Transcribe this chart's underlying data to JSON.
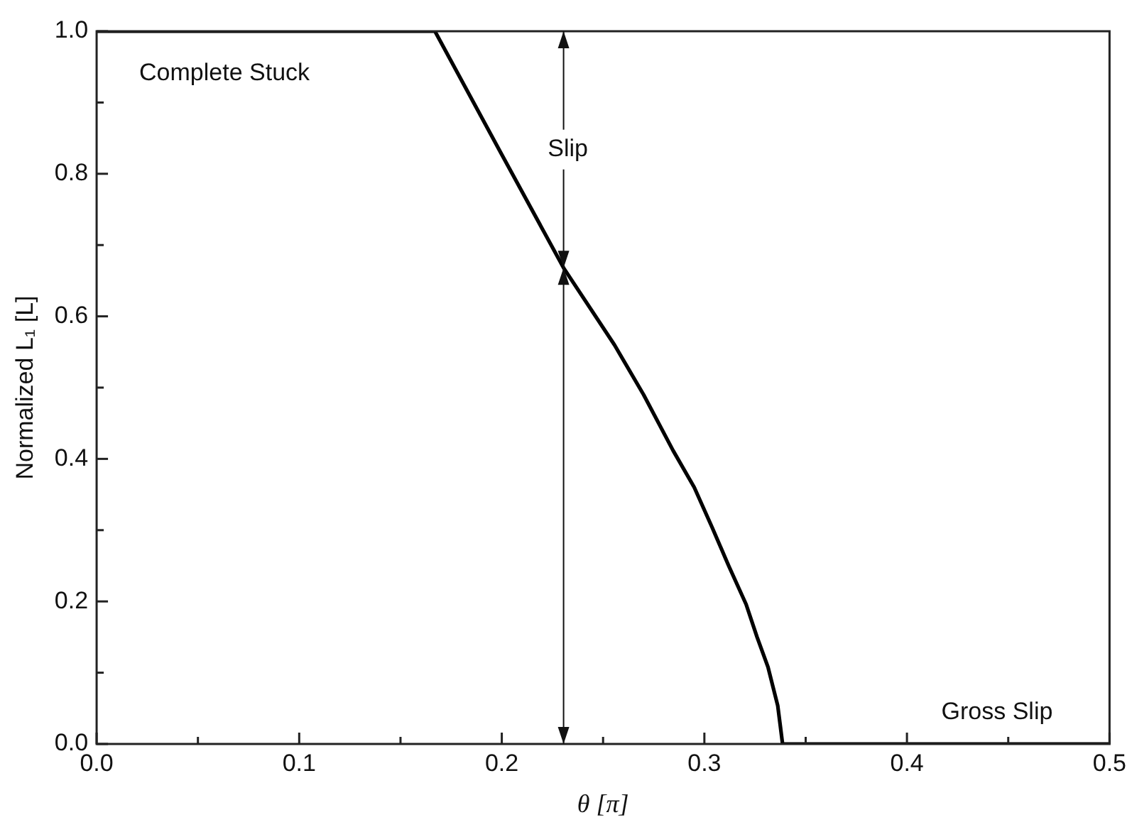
{
  "chart_data": {
    "type": "line",
    "xlabel": "θ [π]",
    "ylabel": "Normalized L₁ [L]",
    "x": [
      0,
      0.167,
      0.2,
      0.2305,
      0.2556,
      0.27,
      0.2845,
      0.295,
      0.3038,
      0.312,
      0.3206,
      0.326,
      0.3314,
      0.3362,
      0.3375,
      0.3386,
      0.5
    ],
    "series": [
      {
        "color": "#000000",
        "values": [
          1,
          1,
          0.827,
          0.668,
          0.56,
          0.49,
          0.412,
          0.36,
          0.304,
          0.25,
          0.196,
          0.15,
          0.108,
          0.054,
          0.025,
          0,
          0
        ]
      }
    ],
    "xlim": [
      0,
      0.5
    ],
    "xticks": [
      {
        "value": 0,
        "label": "0.0"
      },
      {
        "value": 0.05,
        "label": null
      },
      {
        "value": 0.1,
        "label": "0.1"
      },
      {
        "value": 0.15,
        "label": null
      },
      {
        "value": 0.2,
        "label": "0.2"
      },
      {
        "value": 0.25,
        "label": null
      },
      {
        "value": 0.3,
        "label": "0.3"
      },
      {
        "value": 0.35,
        "label": null
      },
      {
        "value": 0.4,
        "label": "0.4"
      },
      {
        "value": 0.45,
        "label": null
      },
      {
        "value": 0.5,
        "label": "0.5"
      }
    ],
    "ylim": [
      0,
      1
    ],
    "yticks": [
      {
        "value": 0,
        "label": "0.0"
      },
      {
        "value": 0.1,
        "label": null
      },
      {
        "value": 0.2,
        "label": "0.2"
      },
      {
        "value": 0.3,
        "label": null
      },
      {
        "value": 0.4,
        "label": "0.4"
      },
      {
        "value": 0.5,
        "label": null
      },
      {
        "value": 0.6,
        "label": "0.6"
      },
      {
        "value": 0.7,
        "label": null
      },
      {
        "value": 0.8,
        "label": "0.8"
      },
      {
        "value": 0.9,
        "label": null
      },
      {
        "value": 1,
        "label": "1.0"
      }
    ],
    "annotations": [
      "Complete Stuck",
      {
        "text": "Slip",
        "x": 0.2305,
        "y": 0.668
      },
      "Gross Slip"
    ],
    "grid": false,
    "legend": false,
    "marker": "none",
    "line_style": "solid"
  }
}
